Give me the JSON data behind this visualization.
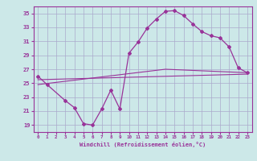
{
  "xlabel": "Windchill (Refroidissement éolien,°C)",
  "bg_color": "#cce8e8",
  "grid_color": "#aaaacc",
  "line_color": "#993399",
  "xlim": [
    -0.5,
    23.5
  ],
  "ylim": [
    18,
    36
  ],
  "yticks": [
    19,
    21,
    23,
    25,
    27,
    29,
    31,
    33,
    35
  ],
  "xticks": [
    0,
    1,
    2,
    3,
    4,
    5,
    6,
    7,
    8,
    9,
    10,
    11,
    12,
    13,
    14,
    15,
    16,
    17,
    18,
    19,
    20,
    21,
    22,
    23
  ],
  "line1_x": [
    0,
    1,
    3,
    4,
    5,
    6,
    7,
    8,
    9,
    10,
    11,
    12,
    13,
    14,
    15,
    16,
    17,
    18,
    19,
    20,
    21,
    22,
    23
  ],
  "line1_y": [
    26.0,
    24.8,
    22.5,
    21.5,
    19.2,
    19.0,
    21.3,
    24.0,
    21.3,
    29.3,
    30.9,
    32.9,
    34.2,
    35.3,
    35.4,
    34.7,
    33.5,
    32.4,
    31.8,
    31.5,
    30.2,
    27.2,
    26.5
  ],
  "line2_x": [
    0,
    23
  ],
  "line2_y": [
    25.5,
    26.3
  ],
  "line3_x": [
    0,
    14,
    23
  ],
  "line3_y": [
    24.8,
    27.0,
    26.5
  ]
}
